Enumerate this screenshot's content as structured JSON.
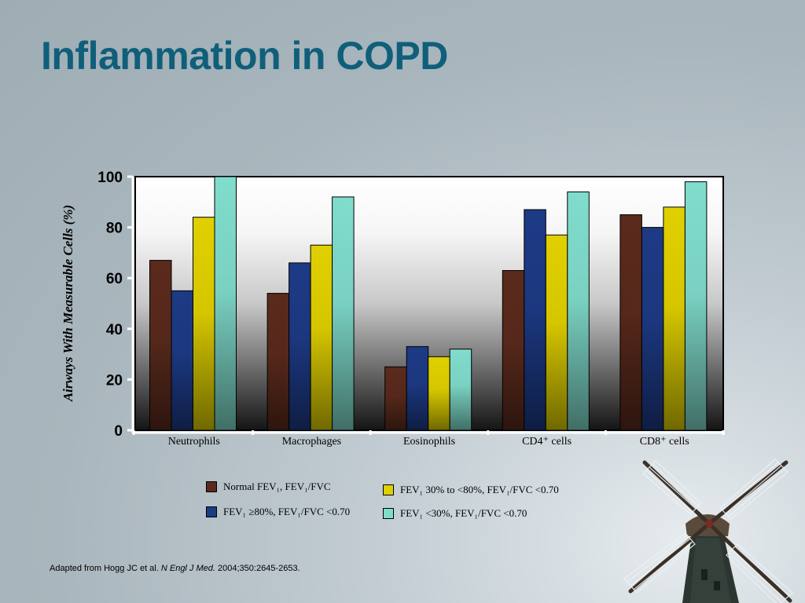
{
  "slide": {
    "title": "Inflammation in COPD"
  },
  "source": {
    "prefix": "Adapted from Hogg JC et al.",
    "journal": "N Engl J Med.",
    "citation": "2004;350:2645-2653."
  },
  "legend": [
    {
      "label": "Normal FEV₁, FEV₁/FVC",
      "color": "#5a2a1c"
    },
    {
      "label": "FEV₁ ≥80%, FEV₁/FVC <0.70",
      "color": "#1d3a85"
    },
    {
      "label": "FEV₁ 30% to <80%, FEV₁/FVC <0.70",
      "color": "#e0d000"
    },
    {
      "label": "FEV₁ <30%, FEV₁/FVC <0.70",
      "color": "#80dccc"
    }
  ],
  "chart_data": {
    "type": "bar",
    "ylabel": "Airways With Measurable Cells (%)",
    "ylim": [
      0,
      100
    ],
    "yticks": [
      0,
      20,
      40,
      60,
      80,
      100
    ],
    "categories": [
      "Neutrophils",
      "Macrophages",
      "Eosinophils",
      "CD4⁺ cells",
      "CD8⁺ cells"
    ],
    "series": [
      {
        "name": "Normal FEV₁, FEV₁/FVC",
        "color": "#5a2a1c",
        "values": [
          67,
          54,
          25,
          63,
          85
        ]
      },
      {
        "name": "FEV₁ ≥80%, FEV₁/FVC <0.70",
        "color": "#1d3a85",
        "values": [
          55,
          66,
          33,
          87,
          80
        ]
      },
      {
        "name": "FEV₁ 30% to <80%, FEV₁/FVC <0.70",
        "color": "#e0d000",
        "values": [
          84,
          73,
          29,
          77,
          88
        ]
      },
      {
        "name": "FEV₁ <30%, FEV₁/FVC <0.70",
        "color": "#80dccc",
        "values": [
          100,
          92,
          32,
          94,
          98
        ]
      }
    ],
    "grid": false,
    "legend_position": "bottom"
  }
}
